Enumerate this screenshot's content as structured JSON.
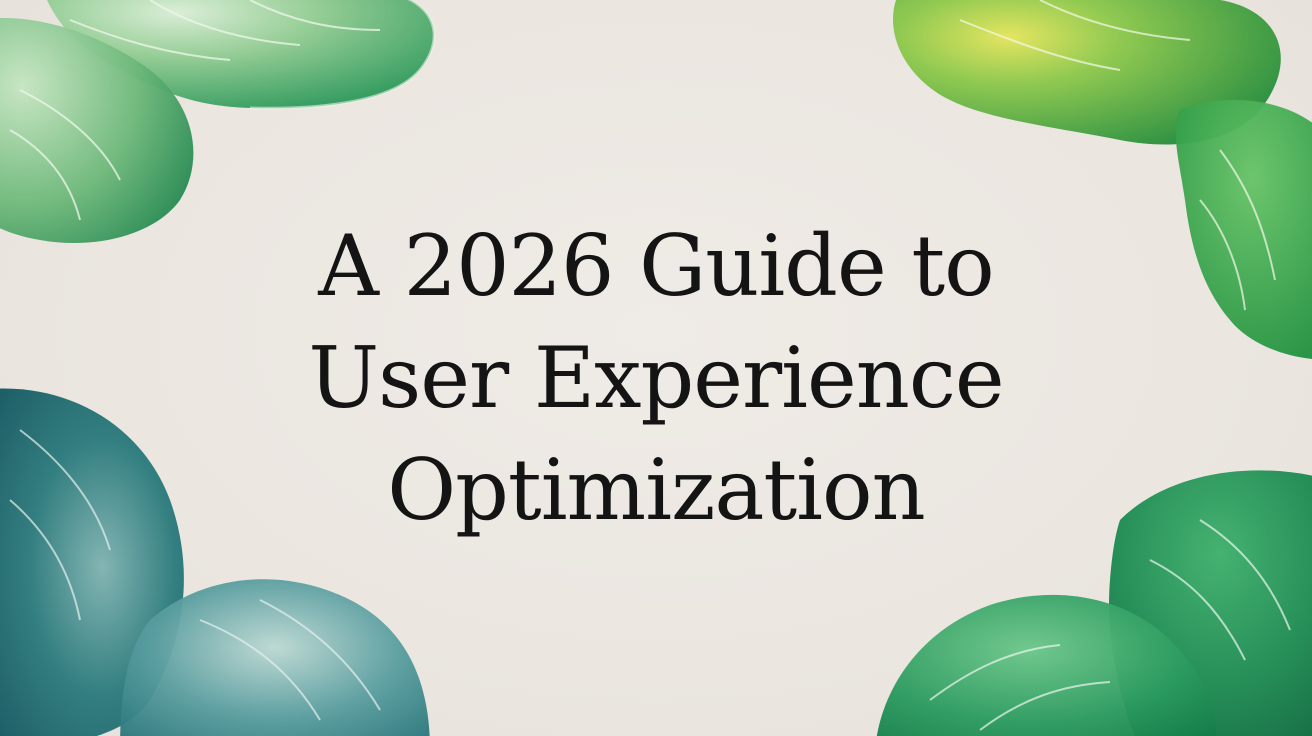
{
  "artwork": {
    "title_lines": [
      "A 2026 Guide to",
      "User Experience",
      "Optimization"
    ],
    "colors": {
      "background": "#ece8e3",
      "text": "#141414",
      "leaf_light_green": "#7fc08a",
      "leaf_bright_green": "#3fa64a",
      "leaf_yellow_green": "#d5dd4a",
      "leaf_teal": "#1f6d72",
      "leaf_dark_green": "#1d7a47"
    },
    "decor": {
      "top_left": "leaf-icon",
      "top_right": "leaf-icon",
      "bottom_left": "leaf-icon",
      "bottom_right": "leaf-icon"
    }
  }
}
